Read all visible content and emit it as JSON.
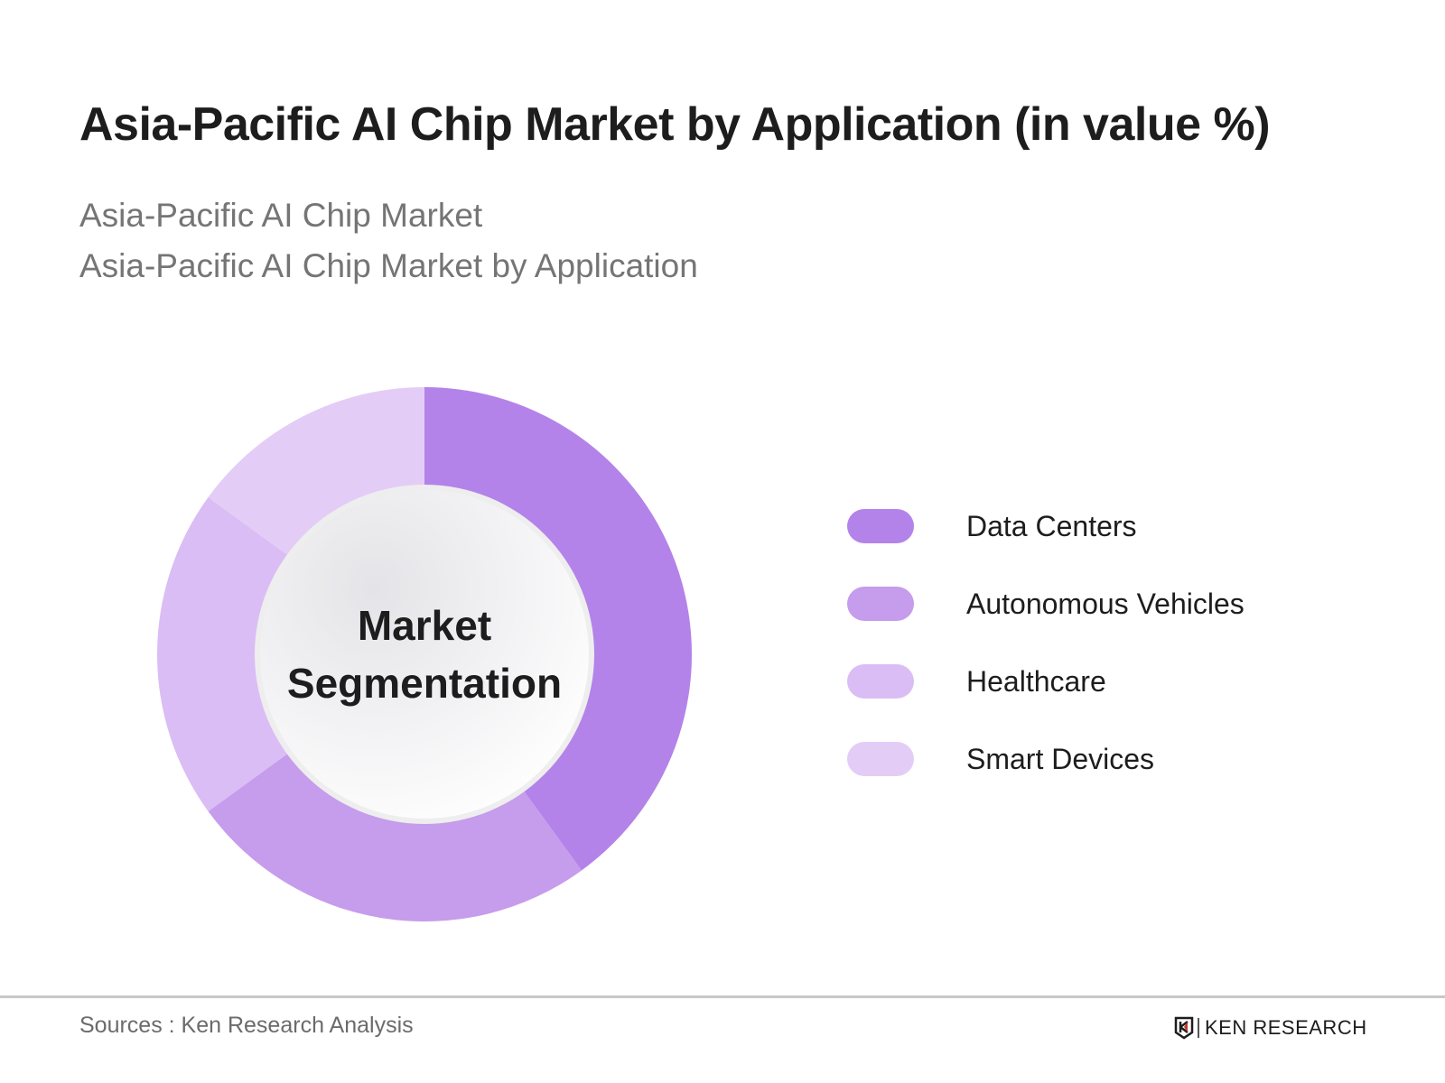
{
  "header": {
    "title": "Asia-Pacific AI Chip Market by Application (in value %)",
    "subtitle_1": "Asia-Pacific AI Chip Market",
    "subtitle_2": "Asia-Pacific AI Chip Market by Application"
  },
  "center_label": {
    "line1": "Market",
    "line2": "Segmentation"
  },
  "legend": [
    {
      "label": "Data Centers",
      "color": "#b383e9"
    },
    {
      "label": "Autonomous Vehicles",
      "color": "#c69cec"
    },
    {
      "label": "Healthcare",
      "color": "#dbbdf5"
    },
    {
      "label": "Smart Devices",
      "color": "#e3cdf7"
    }
  ],
  "footer": {
    "source": "Sources : Ken Research Analysis",
    "logo_text": "KEN RESEARCH"
  },
  "chart_data": {
    "type": "pie",
    "title": "Asia-Pacific AI Chip Market by Application (in value %)",
    "subtitle": "Asia-Pacific AI Chip Market by Application",
    "center_text": "Market Segmentation",
    "categories": [
      "Data Centers",
      "Autonomous Vehicles",
      "Healthcare",
      "Smart Devices"
    ],
    "values": [
      40,
      25,
      20,
      15
    ],
    "colors": [
      "#b383e9",
      "#c69cec",
      "#dbbdf5",
      "#e3cdf7"
    ],
    "donut": true,
    "start_angle": "12 o'clock, clockwise",
    "legend_position": "right",
    "data_labels": false
  }
}
